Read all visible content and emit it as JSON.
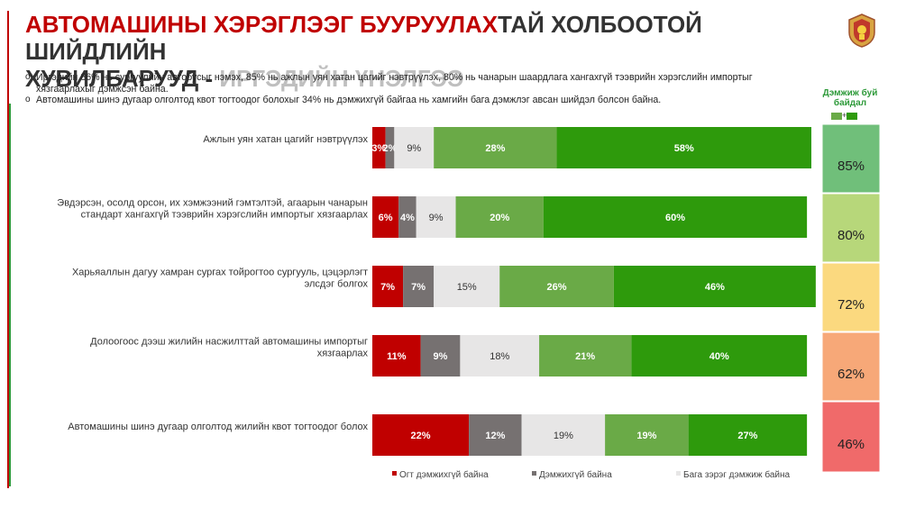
{
  "header": {
    "title_red": "АВТОМАШИНЫ ХЭРЭГЛЭЭГ БУУРУУЛАХ",
    "title_dark": "ТАЙ ХОЛБООТОЙ ШИЙДЛИЙН",
    "title_line2_dark": "ХУВИЛБАРУУД - ",
    "title_line2_grey": "ИРГЭДИЙН ҮНЭЛГЭЭ",
    "crest_icon": "coat-of-arms-icon"
  },
  "bullets": [
    "Иргэдийн 86% нь сургуулийн автобусыг нэмэх, 85% нь ажлын уян хатан цагийг нэвтрүүлэх, 80% нь чанарын шаардлага хангахгүй тээврийн хэрэгслийн импортыг хязгаарлахыг дэмжсэн байна.",
    "Автомашины шинэ дугаар олголтод квот тогтоодог болохыг 34% нь дэмжихгүй байгаа нь хамгийн бага дэмжлэг авсан шийдэл болсон байна."
  ],
  "support": {
    "header": "Дэмжиж буй байдал",
    "legend_plus": "+"
  },
  "colors": {
    "not_support_at_all": "#c00000",
    "not_support": "#767171",
    "neutral": "#e7e6e6",
    "support": "#6aaa47",
    "strong_support": "#2e9a0c",
    "title_red": "#c00000"
  },
  "chart_data": {
    "type": "bar",
    "orientation": "horizontal-stacked-100",
    "categories": [
      "Ажлын уян хатан цагийг нэвтрүүлэх",
      "Эвдэрсэн, осолд орсон, их хэмжээний гэмтэлтэй, агаарын чанарын стандарт хангахгүй тээврийн хэрэгслийн импортыг хязгаарлах",
      "Харьяаллын дагуу хамран сургах тойрогтоо сургууль, цэцэрлэгт элсдэг болгох",
      "Долоогоос дээш жилийн насжилттай автомашины импортыг хязгаарлах",
      "Автомашины шинэ дугаар олголтод жилийн квот тогтоодог болох"
    ],
    "series": [
      {
        "name": "Огт дэмжихгүй байна",
        "values": [
          3,
          6,
          7,
          11,
          22
        ],
        "labels": [
          "3%",
          "6%",
          "7%",
          "11%",
          "22%"
        ]
      },
      {
        "name": "Дэмжихгүй байна",
        "values": [
          2,
          4,
          7,
          9,
          12
        ],
        "labels": [
          "2%",
          "4%",
          "7%",
          "9%",
          "12%"
        ]
      },
      {
        "name": "Бага зэрэг дэмжиж байна",
        "values": [
          9,
          9,
          15,
          18,
          19
        ],
        "labels": [
          "9%",
          "9%",
          "15%",
          "18%",
          "19%"
        ]
      },
      {
        "name": "",
        "values": [
          28,
          20,
          26,
          21,
          19
        ],
        "labels": [
          "28%",
          "20%",
          "26%",
          "21%",
          "19%"
        ]
      },
      {
        "name": "",
        "values": [
          58,
          60,
          46,
          40,
          27
        ],
        "labels": [
          "58%",
          "60%",
          "46%",
          "40%",
          "27%"
        ]
      }
    ],
    "support_totals": [
      "85%",
      "80%",
      "72%",
      "62%",
      "46%"
    ],
    "support_colors": [
      "#70bf7a",
      "#b7d77a",
      "#fbd97f",
      "#f7a878",
      "#f06a6a"
    ],
    "xlim": [
      0,
      100
    ],
    "legend_position": "bottom"
  }
}
